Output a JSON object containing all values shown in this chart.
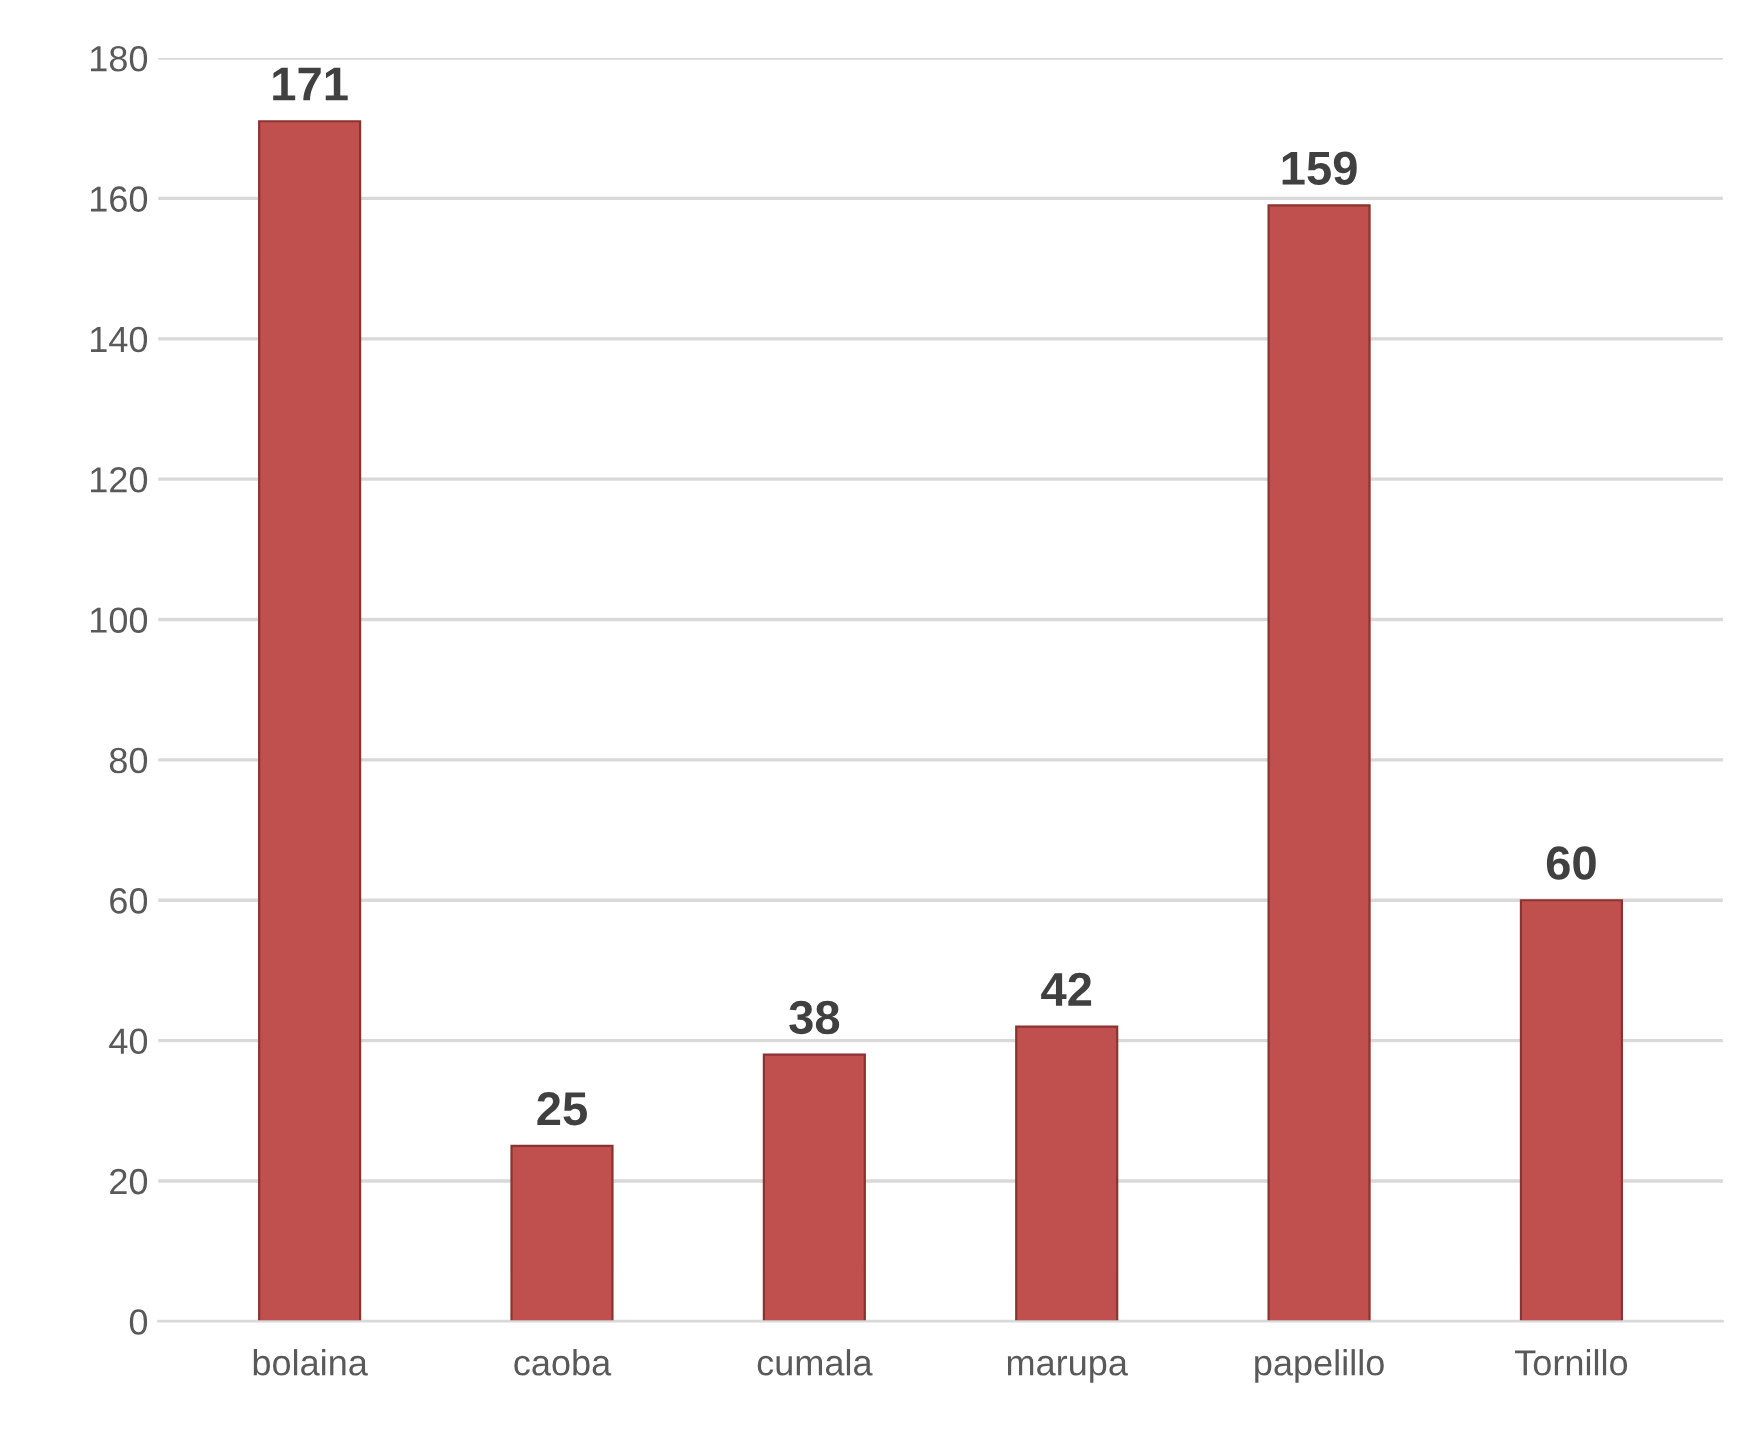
{
  "chart_data": {
    "type": "bar",
    "categories": [
      "bolaina",
      "caoba",
      "cumala",
      "marupa",
      "papelillo",
      "Tornillo"
    ],
    "values": [
      171,
      25,
      38,
      42,
      159,
      60
    ],
    "color": "#c0504d",
    "ylim": [
      0,
      180
    ],
    "yticks": [
      0,
      20,
      40,
      60,
      80,
      100,
      120,
      140,
      160,
      180
    ],
    "grid": "y",
    "data_labels": true
  }
}
